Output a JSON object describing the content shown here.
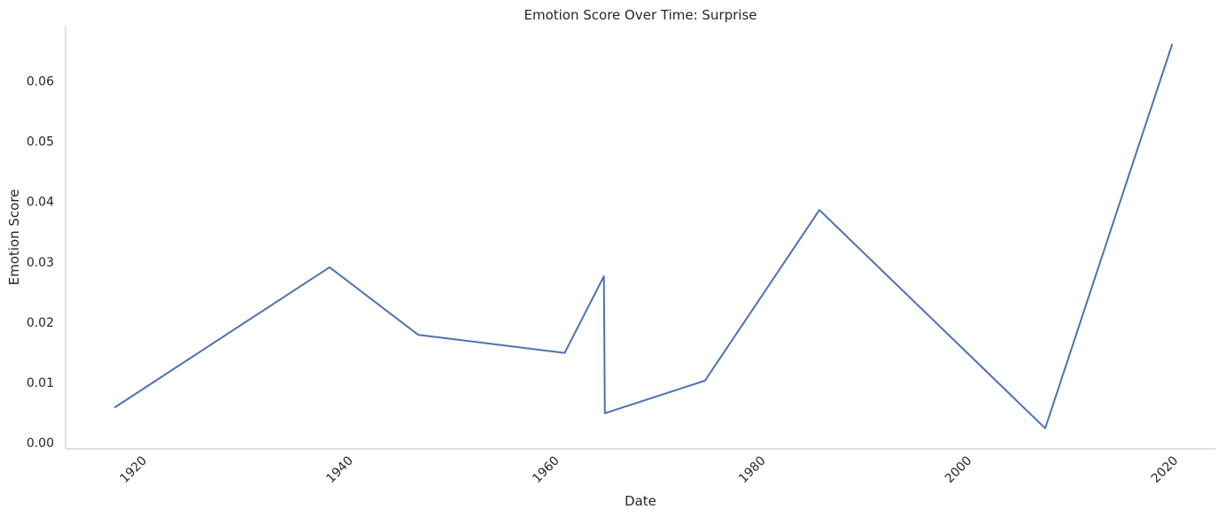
{
  "chart_data": {
    "type": "line",
    "title": "Emotion Score Over Time: Surprise",
    "xlabel": "Date",
    "ylabel": "Emotion Score",
    "x_ticks": [
      "1920",
      "1940",
      "1960",
      "1980",
      "2000",
      "2020"
    ],
    "y_ticks": [
      "0.00",
      "0.01",
      "0.02",
      "0.03",
      "0.04",
      "0.05",
      "0.06"
    ],
    "xlim": [
      1912.5,
      2024.0
    ],
    "ylim": [
      -0.001,
      0.069
    ],
    "grid": false,
    "series": [
      {
        "color": "#4c72b0",
        "points": [
          {
            "x": 1917.3,
            "y": 0.0059
          },
          {
            "x": 1938.1,
            "y": 0.0291
          },
          {
            "x": 1946.7,
            "y": 0.0179
          },
          {
            "x": 1960.9,
            "y": 0.0149
          },
          {
            "x": 1964.7,
            "y": 0.0276
          },
          {
            "x": 1964.8,
            "y": 0.0049
          },
          {
            "x": 1974.5,
            "y": 0.0103
          },
          {
            "x": 1985.6,
            "y": 0.0386
          },
          {
            "x": 2007.5,
            "y": 0.0024
          },
          {
            "x": 2019.8,
            "y": 0.066
          }
        ]
      }
    ]
  }
}
